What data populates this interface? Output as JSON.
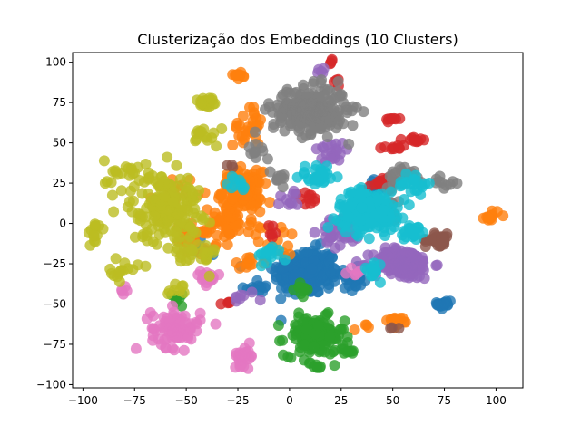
{
  "chart_data": {
    "type": "scatter",
    "title": "Clusterização dos Embeddings (10 Clusters)",
    "xlabel": "",
    "ylabel": "",
    "xlim": [
      -105,
      113
    ],
    "ylim": [
      -102,
      106
    ],
    "xticks": [
      -100,
      -75,
      -50,
      -25,
      0,
      25,
      50,
      75,
      100
    ],
    "yticks": [
      -100,
      -75,
      -50,
      -25,
      0,
      25,
      50,
      75,
      100
    ],
    "grid": false,
    "legend": "none",
    "point_alpha": 0.8,
    "clusters": [
      {
        "color": "#1f77b4",
        "blobs": [
          [
            8,
            -30,
            13,
            12,
            240
          ],
          [
            28,
            -35,
            6,
            6,
            25
          ],
          [
            75,
            -50,
            3,
            3,
            20
          ],
          [
            -15,
            -40,
            5,
            4,
            12
          ],
          [
            40,
            20,
            6,
            6,
            15
          ],
          [
            -40,
            -15,
            6,
            6,
            10
          ]
        ]
      },
      {
        "color": "#ff7f0e",
        "blobs": [
          [
            -23,
            20,
            8,
            10,
            160
          ],
          [
            -30,
            0,
            10,
            8,
            50
          ],
          [
            -45,
            -10,
            8,
            8,
            25
          ],
          [
            -20,
            60,
            6,
            10,
            30
          ],
          [
            -25,
            92,
            3,
            2,
            10
          ],
          [
            98,
            5,
            3,
            3,
            15
          ],
          [
            52,
            -60,
            4,
            2,
            15
          ],
          [
            -55,
            20,
            8,
            8,
            15
          ],
          [
            -5,
            -10,
            8,
            8,
            15
          ],
          [
            -20,
            -25,
            5,
            5,
            12
          ],
          [
            35,
            -65,
            3,
            2,
            4
          ]
        ]
      },
      {
        "color": "#2ca02c",
        "blobs": [
          [
            12,
            -70,
            12,
            10,
            150
          ],
          [
            28,
            -80,
            4,
            2,
            10
          ],
          [
            5,
            -40,
            5,
            5,
            10
          ],
          [
            -55,
            -45,
            5,
            4,
            8
          ],
          [
            13,
            -88,
            3,
            2,
            8
          ]
        ]
      },
      {
        "color": "#d62728",
        "blobs": [
          [
            45,
            25,
            5,
            3,
            20
          ],
          [
            62,
            52,
            3,
            2,
            10
          ],
          [
            50,
            48,
            4,
            2,
            10
          ],
          [
            50,
            65,
            3,
            3,
            8
          ],
          [
            20,
            100,
            2,
            2,
            4
          ],
          [
            25,
            88,
            3,
            2,
            4
          ],
          [
            10,
            15,
            5,
            4,
            10
          ],
          [
            -30,
            -50,
            3,
            2,
            4
          ],
          [
            -10,
            -5,
            4,
            4,
            6
          ]
        ]
      },
      {
        "color": "#9467bd",
        "blobs": [
          [
            55,
            -25,
            12,
            8,
            140
          ],
          [
            25,
            -5,
            8,
            8,
            40
          ],
          [
            0,
            15,
            5,
            5,
            10
          ],
          [
            20,
            45,
            8,
            6,
            20
          ],
          [
            15,
            95,
            4,
            3,
            5
          ],
          [
            -20,
            -45,
            6,
            4,
            8
          ]
        ]
      },
      {
        "color": "#8c564b",
        "blobs": [
          [
            72,
            -10,
            5,
            3,
            40
          ],
          [
            -28,
            35,
            2,
            2,
            3
          ],
          [
            52,
            -65,
            3,
            2,
            3
          ]
        ]
      },
      {
        "color": "#e377c2",
        "blobs": [
          [
            -55,
            -65,
            10,
            10,
            80
          ],
          [
            -22,
            -82,
            4,
            5,
            30
          ],
          [
            -40,
            -35,
            5,
            4,
            15
          ],
          [
            30,
            -30,
            4,
            4,
            6
          ],
          [
            -80,
            -42,
            3,
            2,
            5
          ]
        ]
      },
      {
        "color": "#7f7f7f",
        "blobs": [
          [
            10,
            70,
            15,
            12,
            240
          ],
          [
            -15,
            45,
            5,
            5,
            10
          ],
          [
            55,
            30,
            8,
            6,
            25
          ],
          [
            45,
            5,
            8,
            8,
            20
          ],
          [
            -5,
            30,
            5,
            5,
            10
          ],
          [
            75,
            25,
            4,
            3,
            10
          ]
        ]
      },
      {
        "color": "#bcbd22",
        "blobs": [
          [
            -60,
            10,
            14,
            18,
            180
          ],
          [
            -40,
            75,
            4,
            4,
            25
          ],
          [
            -45,
            -20,
            8,
            8,
            25
          ],
          [
            -80,
            30,
            8,
            8,
            20
          ],
          [
            -95,
            -5,
            3,
            8,
            15
          ],
          [
            -80,
            -30,
            6,
            5,
            15
          ],
          [
            -40,
            55,
            6,
            6,
            15
          ],
          [
            -55,
            -40,
            4,
            4,
            8
          ]
        ]
      },
      {
        "color": "#17becf",
        "blobs": [
          [
            38,
            8,
            12,
            10,
            220
          ],
          [
            15,
            30,
            8,
            6,
            30
          ],
          [
            60,
            25,
            6,
            6,
            20
          ],
          [
            -10,
            -20,
            5,
            5,
            15
          ],
          [
            40,
            -30,
            6,
            6,
            15
          ],
          [
            -25,
            25,
            5,
            5,
            10
          ],
          [
            60,
            -5,
            5,
            5,
            20
          ]
        ]
      }
    ]
  }
}
